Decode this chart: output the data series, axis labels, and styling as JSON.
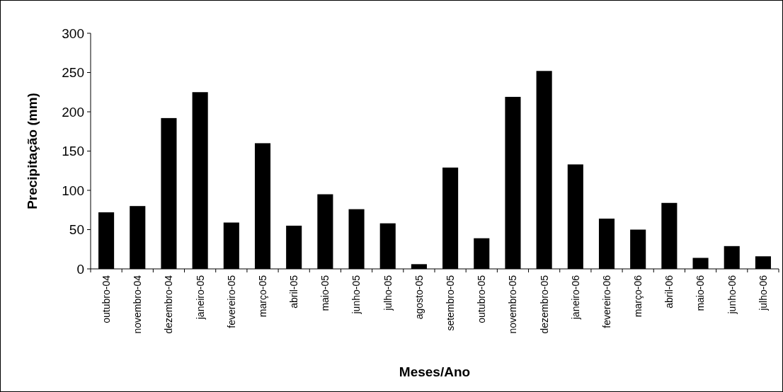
{
  "chart_data": {
    "type": "bar",
    "xlabel": "Meses/Ano",
    "ylabel": "Precipitação (mm)",
    "categories": [
      "outubro-04",
      "novembro-04",
      "dezembro-04",
      "janeiro-05",
      "fevereiro-05",
      "março-05",
      "abril-05",
      "maio-05",
      "junho-05",
      "julho-05",
      "agosto-05",
      "setembro-05",
      "outubro-05",
      "novembro-05",
      "dezembro-05",
      "janeiro-06",
      "fevereiro-06",
      "março-06",
      "abril-06",
      "maio-06",
      "junho-06",
      "julho-06"
    ],
    "values": [
      72,
      80,
      192,
      225,
      59,
      160,
      55,
      95,
      76,
      58,
      6,
      129,
      39,
      219,
      252,
      133,
      64,
      50,
      84,
      14,
      29,
      16
    ],
    "color": "#000000",
    "ylim": [
      0,
      300
    ],
    "yticks": [
      0,
      50,
      100,
      150,
      200,
      250,
      300
    ]
  }
}
